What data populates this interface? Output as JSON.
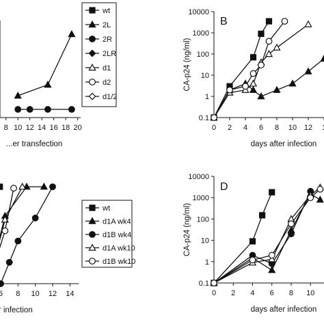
{
  "colors": {
    "ink": "#111111",
    "background": "#ffffff"
  },
  "chart_data": [
    {
      "panel": "",
      "type": "line",
      "scale": "linear",
      "x_label": "...er transfection",
      "y_label": "",
      "x_ticks": [
        "8",
        "10",
        "12",
        "14",
        "16",
        "18",
        "20"
      ],
      "y_ticks": [],
      "series": [
        {
          "name": "2L",
          "marker": "triangle",
          "x": [
            10,
            15,
            19
          ],
          "y": [
            1.0,
            1.8,
            5.5
          ]
        },
        {
          "name": "2R",
          "marker": "circle",
          "x": [
            10,
            12,
            15,
            19
          ],
          "y": [
            0,
            0,
            0,
            0
          ]
        }
      ],
      "legend": {
        "placement": "right",
        "entries": [
          {
            "name": "wt",
            "marker": "square"
          },
          {
            "name": "2L",
            "marker": "triangle"
          },
          {
            "name": "2R",
            "marker": "circle"
          },
          {
            "name": "2LR",
            "marker": "diamond"
          },
          {
            "name": "d1",
            "marker": "open-triangle"
          },
          {
            "name": "d2",
            "marker": "open-circle"
          },
          {
            "name": "d1/2",
            "marker": "open-diamond"
          }
        ]
      }
    },
    {
      "panel": "B",
      "type": "line",
      "scale": "log",
      "x_label": "days after infection",
      "y_label": "CA-p24 (ng/ml)",
      "x_ticks": [
        "0",
        "2",
        "4",
        "6",
        "8",
        "10",
        "12",
        "1"
      ],
      "y_ticks": [
        "0.1",
        "1",
        "10",
        "100",
        "1000",
        "10000"
      ],
      "x_range": [
        0,
        14
      ],
      "y_range": [
        0.1,
        10000
      ],
      "series": [
        {
          "name": "wt",
          "marker": "square",
          "x": [
            0,
            2,
            5,
            6,
            7
          ],
          "y": [
            0.1,
            3,
            70,
            900,
            3500
          ]
        },
        {
          "name": "2L",
          "marker": "triangle",
          "x": [
            0,
            2,
            4,
            5,
            6,
            8,
            10,
            12,
            14
          ],
          "y": [
            0.1,
            2,
            4,
            2,
            1,
            2,
            4,
            15,
            60
          ]
        },
        {
          "name": "d1",
          "marker": "open-triangle",
          "x": [
            0,
            2,
            4,
            5,
            6,
            7,
            8,
            12
          ],
          "y": [
            0.1,
            1.5,
            2,
            4,
            40,
            100,
            200,
            2500
          ]
        },
        {
          "name": "d2",
          "marker": "open-circle",
          "x": [
            0,
            2,
            4,
            5,
            6,
            7,
            9
          ],
          "y": [
            0.1,
            2,
            3,
            12,
            30,
            400,
            3500
          ]
        }
      ]
    },
    {
      "panel": "",
      "type": "line",
      "scale": "log",
      "x_label": "...r infection",
      "y_label": "",
      "x_ticks": [
        "6",
        "8",
        "10",
        "12",
        "14"
      ],
      "y_ticks": [],
      "x_range": [
        4.5,
        15
      ],
      "y_range": [
        0.1,
        10000
      ],
      "series": [
        {
          "name": "wt",
          "marker": "square",
          "x": [
            4.7,
            5.9
          ],
          "y": [
            3500,
            3500
          ]
        },
        {
          "name": "d1A wk4",
          "marker": "triangle",
          "x": [
            4.7,
            6.5,
            9,
            11
          ],
          "y": [
            0.15,
            150,
            3500,
            3500
          ]
        },
        {
          "name": "d1B wk4",
          "marker": "circle",
          "x": [
            4.7,
            6,
            7,
            8,
            10,
            12
          ],
          "y": [
            0.1,
            0.1,
            1,
            10,
            120,
            3500
          ]
        },
        {
          "name": "d1A wk10",
          "marker": "open-triangle",
          "x": [
            4.7,
            6.5,
            8.5
          ],
          "y": [
            0.15,
            100,
            3500
          ]
        },
        {
          "name": "d1B wk10",
          "marker": "open-circle",
          "x": [
            4.7,
            5.5,
            6.5,
            7.5
          ],
          "y": [
            0.15,
            1.5,
            30,
            3000
          ]
        }
      ],
      "legend": {
        "placement": "right",
        "entries": [
          {
            "name": "wt",
            "marker": "square"
          },
          {
            "name": "d1A wk4",
            "marker": "triangle"
          },
          {
            "name": "d1B wk4",
            "marker": "circle"
          },
          {
            "name": "d1A wk10",
            "marker": "open-triangle"
          },
          {
            "name": "d1B wk10",
            "marker": "open-circle"
          }
        ]
      }
    },
    {
      "panel": "D",
      "type": "line",
      "scale": "log",
      "x_label": "days after infection",
      "y_label": "CA-p24 (ng/ml)",
      "x_ticks": [
        "0",
        "2",
        "4",
        "6",
        "8",
        "10",
        "1"
      ],
      "y_ticks": [
        "0.1",
        "1",
        "10",
        "100",
        "1000",
        "10000"
      ],
      "x_range": [
        0,
        12
      ],
      "y_range": [
        0.1,
        10000
      ],
      "series": [
        {
          "name": "wt",
          "marker": "square",
          "x": [
            0,
            4,
            5,
            6
          ],
          "y": [
            0.1,
            9,
            150,
            1800
          ]
        },
        {
          "name": "d1A wk4",
          "marker": "triangle",
          "x": [
            0,
            4,
            6,
            8,
            10,
            11
          ],
          "y": [
            0.1,
            1.5,
            0.4,
            30,
            1500,
            800
          ]
        },
        {
          "name": "d1B wk4",
          "marker": "circle",
          "x": [
            0,
            4,
            6,
            8,
            10
          ],
          "y": [
            0.1,
            2,
            0.8,
            20,
            2000
          ]
        },
        {
          "name": "d1A wk10",
          "marker": "open-triangle",
          "x": [
            0,
            4,
            6,
            8,
            10,
            11
          ],
          "y": [
            0.1,
            0.9,
            1.3,
            100,
            1300,
            3000
          ]
        },
        {
          "name": "d1B wk10",
          "marker": "open-circle",
          "x": [
            0,
            4,
            6,
            8,
            10,
            11
          ],
          "y": [
            0.1,
            1.2,
            2,
            60,
            1000,
            2500
          ]
        }
      ]
    }
  ]
}
